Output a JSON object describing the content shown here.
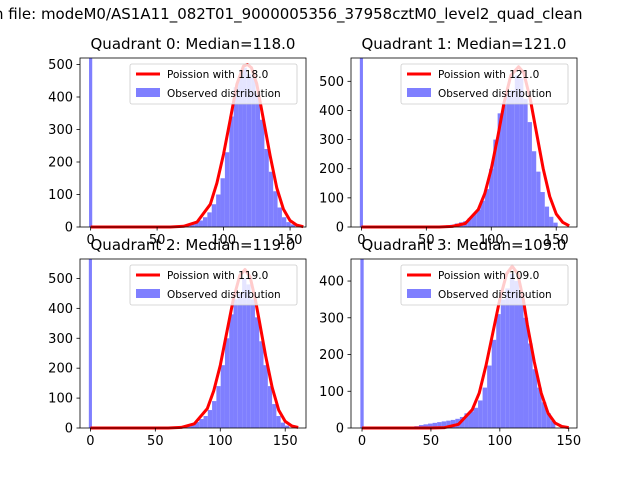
{
  "figure": {
    "suptitle": "n file: modeM0/AS1A11_082T01_9000005356_37958cztM0_level2_quad_clean"
  },
  "colors": {
    "hist": "#7f7fff",
    "fit": "#ff0000",
    "axis": "#000000",
    "background": "#ffffff"
  },
  "chart_data": [
    {
      "type": "bar",
      "title": "Quadrant 0: Median=118.0",
      "xlabel": "",
      "ylabel": "",
      "xlim": [
        -8,
        162
      ],
      "ylim": [
        0,
        520
      ],
      "xticks": [
        0,
        50,
        100,
        150
      ],
      "yticks": [
        0,
        100,
        200,
        300,
        400,
        500
      ],
      "legend": {
        "position": "top-right",
        "entries": [
          "Poission with 118.0",
          "Observed distribution"
        ]
      },
      "bin_width": 3.3,
      "zero_bin": {
        "x": 0,
        "value": 520
      },
      "histogram": {
        "x": [
          68,
          71.3,
          74.6,
          77.9,
          81.2,
          84.5,
          87.8,
          91.1,
          94.4,
          97.7,
          101,
          104.3,
          107.6,
          110.9,
          114.2,
          117.5,
          120.8,
          124.1,
          127.4,
          130.7,
          134,
          137.3,
          140.6,
          143.9,
          147.2,
          150.5
        ],
        "values": [
          4,
          8,
          12,
          15,
          20,
          30,
          45,
          70,
          100,
          150,
          230,
          340,
          430,
          460,
          490,
          470,
          460,
          410,
          330,
          240,
          170,
          110,
          60,
          30,
          15,
          8
        ]
      },
      "poisson": {
        "lambda": 118.0,
        "amplitude": 500,
        "x": [
          0,
          60,
          70,
          80,
          90,
          95,
          100,
          105,
          110,
          115,
          118,
          121,
          125,
          130,
          135,
          140,
          145,
          150,
          155,
          160
        ],
        "values": [
          0,
          0.1,
          2,
          15,
          70,
          135,
          225,
          330,
          440,
          495,
          500,
          490,
          440,
          330,
          220,
          120,
          55,
          20,
          6,
          1
        ]
      }
    },
    {
      "type": "bar",
      "title": "Quadrant 1: Median=121.0",
      "xlabel": "",
      "ylabel": "",
      "xlim": [
        -8,
        166
      ],
      "ylim": [
        0,
        580
      ],
      "xticks": [
        0,
        50,
        100,
        150
      ],
      "yticks": [
        0,
        100,
        200,
        300,
        400,
        500
      ],
      "legend": {
        "position": "top-right",
        "entries": [
          "Poission with 121.0",
          "Observed distribution"
        ]
      },
      "bin_width": 3.3,
      "zero_bin": {
        "x": 0,
        "value": 580
      },
      "histogram": {
        "x": [
          62,
          65.3,
          68.6,
          71.9,
          75.2,
          78.5,
          81.8,
          85.1,
          88.4,
          91.7,
          95,
          98.3,
          101.6,
          104.9,
          108.2,
          111.5,
          114.8,
          118.1,
          121.4,
          124.7,
          128,
          131.3,
          134.6,
          137.9,
          141.2,
          144.5,
          147.8
        ],
        "values": [
          4,
          6,
          8,
          12,
          16,
          20,
          30,
          45,
          60,
          90,
          130,
          200,
          300,
          390,
          420,
          460,
          470,
          520,
          510,
          440,
          360,
          260,
          190,
          120,
          70,
          35,
          15
        ]
      },
      "poisson": {
        "lambda": 121.0,
        "amplitude": 550,
        "x": [
          0,
          60,
          70,
          80,
          90,
          95,
          100,
          105,
          110,
          115,
          121,
          125,
          130,
          135,
          140,
          145,
          150,
          155,
          160
        ],
        "values": [
          0,
          0.1,
          2,
          12,
          60,
          115,
          200,
          310,
          430,
          520,
          550,
          530,
          440,
          320,
          200,
          105,
          45,
          16,
          4
        ]
      }
    },
    {
      "type": "bar",
      "title": "Quadrant 2: Median=119.0",
      "xlabel": "",
      "ylabel": "",
      "xlim": [
        -8,
        166
      ],
      "ylim": [
        0,
        565
      ],
      "xticks": [
        0,
        50,
        100,
        150
      ],
      "yticks": [
        0,
        100,
        200,
        300,
        400,
        500
      ],
      "legend": {
        "position": "top-right",
        "entries": [
          "Poission with 119.0",
          "Observed distribution"
        ]
      },
      "bin_width": 3.3,
      "zero_bin": {
        "x": 0,
        "value": 565
      },
      "histogram": {
        "x": [
          64,
          67.3,
          70.6,
          73.9,
          77.2,
          80.5,
          83.8,
          87.1,
          90.4,
          93.7,
          97,
          100.3,
          103.6,
          106.9,
          110.2,
          113.5,
          116.8,
          120.1,
          123.4,
          126.7,
          130,
          133.3,
          136.6,
          139.9,
          143.2,
          146.5,
          149.8
        ],
        "values": [
          3,
          5,
          7,
          10,
          14,
          20,
          30,
          40,
          60,
          90,
          140,
          210,
          300,
          380,
          430,
          450,
          500,
          480,
          430,
          370,
          290,
          210,
          140,
          80,
          40,
          18,
          8
        ]
      },
      "poisson": {
        "lambda": 119.0,
        "amplitude": 530,
        "x": [
          0,
          60,
          70,
          80,
          90,
          95,
          100,
          105,
          110,
          115,
          119,
          123,
          127,
          130,
          135,
          140,
          145,
          150,
          155,
          160
        ],
        "values": [
          0,
          0.1,
          2,
          14,
          65,
          125,
          210,
          320,
          430,
          510,
          530,
          505,
          430,
          360,
          240,
          135,
          60,
          22,
          7,
          2
        ]
      }
    },
    {
      "type": "bar",
      "title": "Quadrant 3: Median=109.0",
      "xlabel": "",
      "ylabel": "",
      "xlim": [
        -8,
        156
      ],
      "ylim": [
        0,
        460
      ],
      "xticks": [
        0,
        50,
        100,
        150
      ],
      "yticks": [
        0,
        100,
        200,
        300,
        400
      ],
      "legend": {
        "position": "top-right",
        "entries": [
          "Poission with 109.0",
          "Observed distribution"
        ]
      },
      "bin_width": 3.3,
      "zero_bin": {
        "x": 0,
        "value": 460
      },
      "histogram": {
        "x": [
          38,
          41.3,
          44.6,
          47.9,
          51.2,
          54.5,
          57.8,
          61.1,
          64.4,
          67.7,
          71,
          74.3,
          77.6,
          80.9,
          84.2,
          87.5,
          90.8,
          94.1,
          97.4,
          100.7,
          104,
          107.3,
          110.6,
          113.9,
          117.2,
          120.5,
          123.8,
          127.1,
          130.4,
          133.7,
          137
        ],
        "values": [
          5,
          8,
          10,
          12,
          14,
          16,
          18,
          20,
          22,
          25,
          30,
          40,
          45,
          55,
          75,
          110,
          170,
          240,
          310,
          350,
          380,
          420,
          400,
          360,
          300,
          230,
          160,
          110,
          70,
          40,
          20
        ]
      },
      "poisson": {
        "lambda": 109.0,
        "amplitude": 440,
        "x": [
          0,
          50,
          60,
          70,
          80,
          85,
          90,
          95,
          100,
          105,
          109,
          113,
          117,
          120,
          125,
          130,
          135,
          140,
          145,
          150
        ],
        "values": [
          0,
          0.1,
          1,
          10,
          50,
          95,
          170,
          260,
          350,
          420,
          440,
          420,
          350,
          280,
          180,
          95,
          40,
          14,
          4,
          1
        ]
      }
    }
  ]
}
